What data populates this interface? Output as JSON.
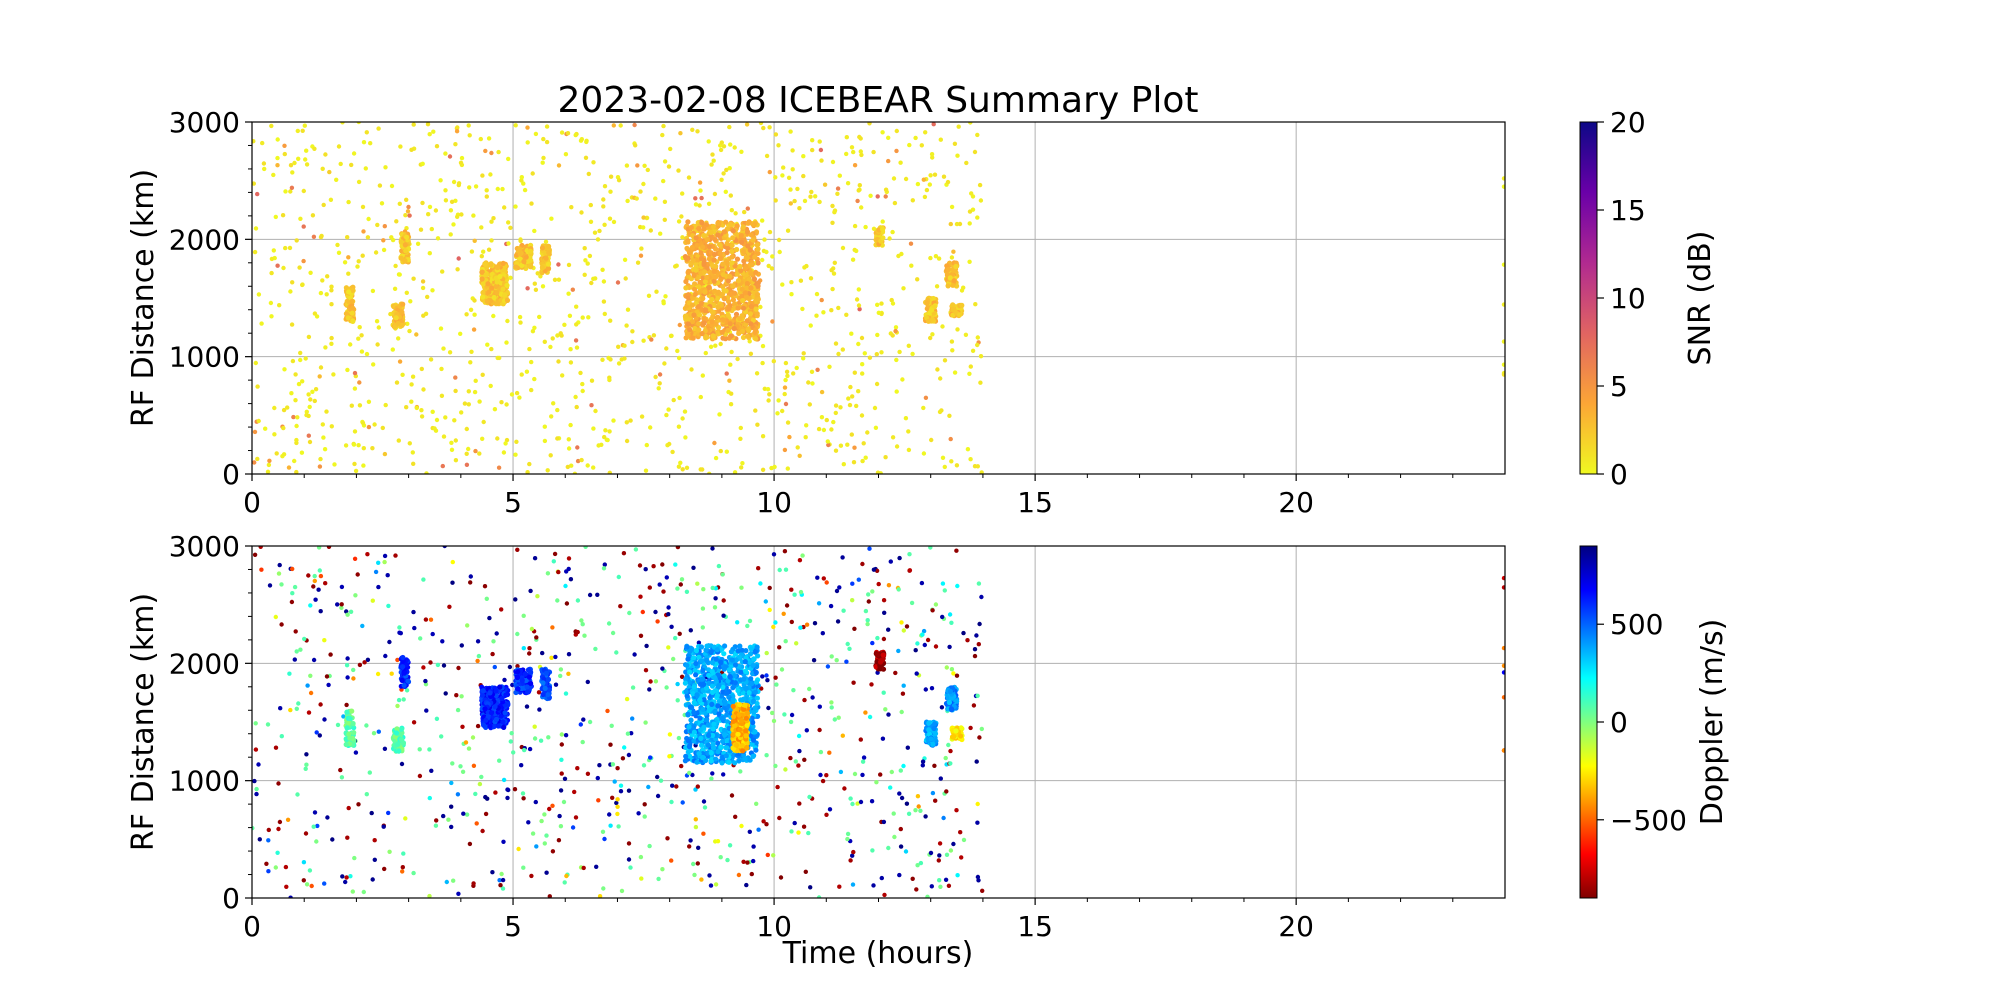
{
  "figure": {
    "title": "2023-02-08 ICEBEAR Summary Plot"
  },
  "chart_data": [
    {
      "type": "scatter",
      "panel": "top",
      "xlabel": "",
      "ylabel": "RF Distance (km)",
      "xlim": [
        0,
        24
      ],
      "ylim": [
        0,
        3000
      ],
      "x_ticks": [
        0,
        5,
        10,
        15,
        20
      ],
      "x_tick_labels": [
        "0",
        "5",
        "10",
        "15",
        "20"
      ],
      "y_ticks": [
        0,
        1000,
        2000,
        3000
      ],
      "y_tick_labels": [
        "0",
        "1000",
        "2000",
        "3000"
      ],
      "grid": true,
      "color_by": "SNR",
      "colorbar": {
        "label": "SNR (dB)",
        "range": [
          0,
          20
        ],
        "ticks": [
          0,
          5,
          10,
          15,
          20
        ],
        "tick_labels": [
          "0",
          "5",
          "10",
          "15",
          "20"
        ],
        "colormap": "plasma_r",
        "stops": [
          "#f0f921",
          "#fca636",
          "#e16462",
          "#b12a90",
          "#6a00a8",
          "#0d0887"
        ]
      },
      "data_extent": {
        "time_hours": [
          0,
          14
        ],
        "note_visible": "scattered echoes concentrated 0-14 h"
      },
      "clusters": [
        {
          "t": [
            1.8,
            1.95
          ],
          "r": [
            1300,
            1600
          ],
          "snr": 2
        },
        {
          "t": [
            2.7,
            2.9
          ],
          "r": [
            1250,
            1450
          ],
          "snr": 2
        },
        {
          "t": [
            2.85,
            3.0
          ],
          "r": [
            1800,
            2050
          ],
          "snr": 2
        },
        {
          "t": [
            4.4,
            4.9
          ],
          "r": [
            1450,
            1800
          ],
          "snr": 2
        },
        {
          "t": [
            5.05,
            5.35
          ],
          "r": [
            1750,
            1950
          ],
          "snr": 2
        },
        {
          "t": [
            5.55,
            5.7
          ],
          "r": [
            1700,
            1950
          ],
          "snr": 2
        },
        {
          "t": [
            8.3,
            9.7
          ],
          "r": [
            1150,
            2150
          ],
          "snr": 3
        },
        {
          "t": [
            11.95,
            12.1
          ],
          "r": [
            1950,
            2100
          ],
          "snr": 2
        },
        {
          "t": [
            12.9,
            13.1
          ],
          "r": [
            1300,
            1500
          ],
          "snr": 2
        },
        {
          "t": [
            13.3,
            13.5
          ],
          "r": [
            1600,
            1800
          ],
          "snr": 2
        },
        {
          "t": [
            13.4,
            13.6
          ],
          "r": [
            1350,
            1450
          ],
          "snr": 2
        }
      ],
      "background": {
        "count": 1100,
        "t": [
          0,
          14
        ],
        "r": [
          0,
          3000
        ],
        "snr_typical": 0.5
      }
    },
    {
      "type": "scatter",
      "panel": "bottom",
      "xlabel": "Time (hours)",
      "ylabel": "RF Distance (km)",
      "xlim": [
        0,
        24
      ],
      "ylim": [
        0,
        3000
      ],
      "x_ticks": [
        0,
        5,
        10,
        15,
        20
      ],
      "x_tick_labels": [
        "0",
        "5",
        "10",
        "15",
        "20"
      ],
      "y_ticks": [
        0,
        1000,
        2000,
        3000
      ],
      "y_tick_labels": [
        "0",
        "1000",
        "2000",
        "3000"
      ],
      "grid": true,
      "color_by": "Doppler",
      "colorbar": {
        "label": "Doppler (m/s)",
        "range": [
          -900,
          900
        ],
        "ticks": [
          -500,
          0,
          500
        ],
        "tick_labels": [
          "−500",
          "0",
          "500"
        ],
        "colormap": "jet_r",
        "stops": [
          "#800000",
          "#ff0000",
          "#ff8000",
          "#ffff00",
          "#80ff80",
          "#00ffff",
          "#0080ff",
          "#0000ff",
          "#000080"
        ]
      },
      "clusters": [
        {
          "t": [
            1.8,
            1.95
          ],
          "r": [
            1300,
            1600
          ],
          "doppler": 60
        },
        {
          "t": [
            2.7,
            2.9
          ],
          "r": [
            1250,
            1450
          ],
          "doppler": 80
        },
        {
          "t": [
            2.85,
            3.0
          ],
          "r": [
            1800,
            2050
          ],
          "doppler": 600
        },
        {
          "t": [
            4.4,
            4.9
          ],
          "r": [
            1450,
            1800
          ],
          "doppler": 620
        },
        {
          "t": [
            5.05,
            5.35
          ],
          "r": [
            1750,
            1950
          ],
          "doppler": 600
        },
        {
          "t": [
            5.55,
            5.7
          ],
          "r": [
            1700,
            1950
          ],
          "doppler": 550
        },
        {
          "t": [
            8.3,
            9.7
          ],
          "r": [
            1150,
            2150
          ],
          "doppler": 380
        },
        {
          "t": [
            9.2,
            9.5
          ],
          "r": [
            1250,
            1650
          ],
          "doppler": -350
        },
        {
          "t": [
            11.95,
            12.1
          ],
          "r": [
            1950,
            2100
          ],
          "doppler": -850
        },
        {
          "t": [
            12.9,
            13.1
          ],
          "r": [
            1300,
            1500
          ],
          "doppler": 380
        },
        {
          "t": [
            13.3,
            13.5
          ],
          "r": [
            1600,
            1800
          ],
          "doppler": 420
        },
        {
          "t": [
            13.4,
            13.6
          ],
          "r": [
            1350,
            1450
          ],
          "doppler": -250
        }
      ],
      "background": {
        "count": 900,
        "t": [
          0,
          14
        ],
        "r": [
          0,
          3000
        ],
        "doppler_range": [
          -900,
          900
        ]
      }
    }
  ]
}
